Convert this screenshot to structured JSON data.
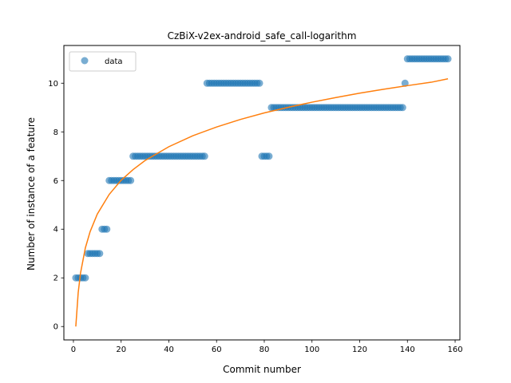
{
  "chart_data": {
    "type": "scatter",
    "title": "CzBiX-v2ex-android_safe_call-logarithm",
    "xlabel": "Commit number",
    "ylabel": "Number of instance of a feature",
    "xlim": [
      -4,
      162
    ],
    "ylim": [
      -0.55,
      11.55
    ],
    "xticks": [
      0,
      20,
      40,
      60,
      80,
      100,
      120,
      140,
      160
    ],
    "yticks": [
      0,
      2,
      4,
      6,
      8,
      10
    ],
    "grid": false,
    "legend": {
      "placement": "top-left",
      "entries": [
        "data"
      ]
    },
    "colors": {
      "data": "#1f77b4",
      "fit": "#ff7f0e"
    },
    "series": [
      {
        "name": "data",
        "kind": "scatter",
        "points": [
          [
            1,
            2
          ],
          [
            2,
            2
          ],
          [
            3,
            2
          ],
          [
            4,
            2
          ],
          [
            5,
            2
          ],
          [
            6,
            3
          ],
          [
            7,
            3
          ],
          [
            8,
            3
          ],
          [
            9,
            3
          ],
          [
            10,
            3
          ],
          [
            11,
            3
          ],
          [
            12,
            4
          ],
          [
            13,
            4
          ],
          [
            14,
            4
          ],
          [
            15,
            6
          ],
          [
            16,
            6
          ],
          [
            17,
            6
          ],
          [
            18,
            6
          ],
          [
            19,
            6
          ],
          [
            20,
            6
          ],
          [
            21,
            6
          ],
          [
            22,
            6
          ],
          [
            23,
            6
          ],
          [
            24,
            6
          ],
          [
            25,
            7
          ],
          [
            26,
            7
          ],
          [
            27,
            7
          ],
          [
            28,
            7
          ],
          [
            29,
            7
          ],
          [
            30,
            7
          ],
          [
            31,
            7
          ],
          [
            32,
            7
          ],
          [
            33,
            7
          ],
          [
            34,
            7
          ],
          [
            35,
            7
          ],
          [
            36,
            7
          ],
          [
            37,
            7
          ],
          [
            38,
            7
          ],
          [
            39,
            7
          ],
          [
            40,
            7
          ],
          [
            41,
            7
          ],
          [
            42,
            7
          ],
          [
            43,
            7
          ],
          [
            44,
            7
          ],
          [
            45,
            7
          ],
          [
            46,
            7
          ],
          [
            47,
            7
          ],
          [
            48,
            7
          ],
          [
            49,
            7
          ],
          [
            50,
            7
          ],
          [
            51,
            7
          ],
          [
            52,
            7
          ],
          [
            53,
            7
          ],
          [
            54,
            7
          ],
          [
            55,
            7
          ],
          [
            56,
            10
          ],
          [
            57,
            10
          ],
          [
            58,
            10
          ],
          [
            59,
            10
          ],
          [
            60,
            10
          ],
          [
            61,
            10
          ],
          [
            62,
            10
          ],
          [
            63,
            10
          ],
          [
            64,
            10
          ],
          [
            65,
            10
          ],
          [
            66,
            10
          ],
          [
            67,
            10
          ],
          [
            68,
            10
          ],
          [
            69,
            10
          ],
          [
            70,
            10
          ],
          [
            71,
            10
          ],
          [
            72,
            10
          ],
          [
            73,
            10
          ],
          [
            74,
            10
          ],
          [
            75,
            10
          ],
          [
            76,
            10
          ],
          [
            77,
            10
          ],
          [
            78,
            10
          ],
          [
            79,
            7
          ],
          [
            80,
            7
          ],
          [
            81,
            7
          ],
          [
            82,
            7
          ],
          [
            83,
            9
          ],
          [
            84,
            9
          ],
          [
            85,
            9
          ],
          [
            86,
            9
          ],
          [
            87,
            9
          ],
          [
            88,
            9
          ],
          [
            89,
            9
          ],
          [
            90,
            9
          ],
          [
            91,
            9
          ],
          [
            92,
            9
          ],
          [
            93,
            9
          ],
          [
            94,
            9
          ],
          [
            95,
            9
          ],
          [
            96,
            9
          ],
          [
            97,
            9
          ],
          [
            98,
            9
          ],
          [
            99,
            9
          ],
          [
            100,
            9
          ],
          [
            101,
            9
          ],
          [
            102,
            9
          ],
          [
            103,
            9
          ],
          [
            104,
            9
          ],
          [
            105,
            9
          ],
          [
            106,
            9
          ],
          [
            107,
            9
          ],
          [
            108,
            9
          ],
          [
            109,
            9
          ],
          [
            110,
            9
          ],
          [
            111,
            9
          ],
          [
            112,
            9
          ],
          [
            113,
            9
          ],
          [
            114,
            9
          ],
          [
            115,
            9
          ],
          [
            116,
            9
          ],
          [
            117,
            9
          ],
          [
            118,
            9
          ],
          [
            119,
            9
          ],
          [
            120,
            9
          ],
          [
            121,
            9
          ],
          [
            122,
            9
          ],
          [
            123,
            9
          ],
          [
            124,
            9
          ],
          [
            125,
            9
          ],
          [
            126,
            9
          ],
          [
            127,
            9
          ],
          [
            128,
            9
          ],
          [
            129,
            9
          ],
          [
            130,
            9
          ],
          [
            131,
            9
          ],
          [
            132,
            9
          ],
          [
            133,
            9
          ],
          [
            134,
            9
          ],
          [
            135,
            9
          ],
          [
            136,
            9
          ],
          [
            137,
            9
          ],
          [
            138,
            9
          ],
          [
            139,
            10
          ],
          [
            140,
            11
          ],
          [
            141,
            11
          ],
          [
            142,
            11
          ],
          [
            143,
            11
          ],
          [
            144,
            11
          ],
          [
            145,
            11
          ],
          [
            146,
            11
          ],
          [
            147,
            11
          ],
          [
            148,
            11
          ],
          [
            149,
            11
          ],
          [
            150,
            11
          ],
          [
            151,
            11
          ],
          [
            152,
            11
          ],
          [
            153,
            11
          ],
          [
            154,
            11
          ],
          [
            155,
            11
          ],
          [
            156,
            11
          ],
          [
            157,
            11
          ]
        ]
      },
      {
        "kind": "line",
        "points": [
          [
            1,
            0.0
          ],
          [
            2,
            1.39
          ],
          [
            3,
            2.21
          ],
          [
            5,
            3.23
          ],
          [
            7,
            3.9
          ],
          [
            10,
            4.62
          ],
          [
            15,
            5.43
          ],
          [
            20,
            6.01
          ],
          [
            25,
            6.45
          ],
          [
            30,
            6.82
          ],
          [
            40,
            7.39
          ],
          [
            50,
            7.84
          ],
          [
            60,
            8.2
          ],
          [
            70,
            8.51
          ],
          [
            80,
            8.78
          ],
          [
            90,
            9.01
          ],
          [
            100,
            9.22
          ],
          [
            110,
            9.41
          ],
          [
            120,
            9.59
          ],
          [
            130,
            9.75
          ],
          [
            140,
            9.9
          ],
          [
            150,
            10.04
          ],
          [
            157,
            10.18
          ]
        ]
      }
    ]
  }
}
